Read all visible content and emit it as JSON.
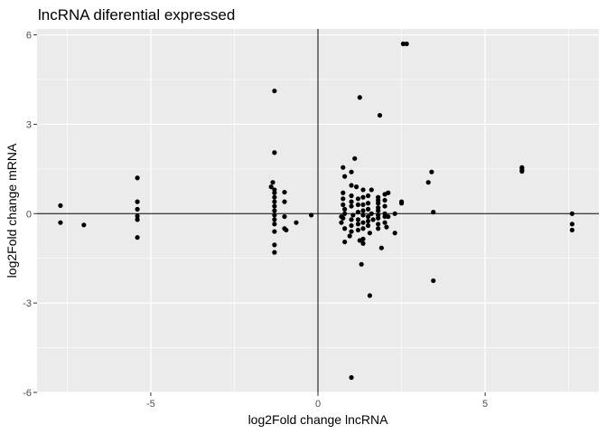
{
  "chart_data": {
    "type": "scatter",
    "title": "lncRNA diferential expressed",
    "xlabel": "log2Fold change lncRNA",
    "ylabel": "log2Fold change mRNA",
    "xlim": [
      -8.4,
      8.4
    ],
    "ylim": [
      -6,
      6.2
    ],
    "x_major_ticks": [
      -5,
      0,
      5
    ],
    "x_tick_labels": [
      "-5",
      "0",
      "5"
    ],
    "x_minor_ticks": [
      -7.5,
      -2.5,
      2.5,
      7.5
    ],
    "y_major_ticks": [
      -6,
      -3,
      0,
      3,
      6
    ],
    "y_tick_labels": [
      "-6",
      "-3",
      "0",
      "3",
      "6"
    ],
    "y_minor_ticks": [
      -4.5,
      -1.5,
      1.5,
      4.5
    ],
    "reference_lines": {
      "x": 0,
      "y": 0
    },
    "grid": true,
    "colors": {
      "panel": "#ebebeb",
      "grid": "#ffffff",
      "point": "#000000",
      "reference": "#000000"
    },
    "points": [
      [
        -7.7,
        0.27
      ],
      [
        -7.7,
        -0.3
      ],
      [
        -7.0,
        -0.38
      ],
      [
        -5.4,
        1.2
      ],
      [
        -5.4,
        0.4
      ],
      [
        -5.4,
        0.15
      ],
      [
        -5.4,
        -0.08
      ],
      [
        -5.4,
        -0.2
      ],
      [
        -5.4,
        -0.8
      ],
      [
        -1.4,
        0.9
      ],
      [
        -1.35,
        1.05
      ],
      [
        -1.3,
        4.12
      ],
      [
        -1.3,
        2.05
      ],
      [
        -1.3,
        0.8
      ],
      [
        -1.3,
        0.7
      ],
      [
        -1.3,
        0.55
      ],
      [
        -1.3,
        0.4
      ],
      [
        -1.3,
        0.25
      ],
      [
        -1.3,
        0.1
      ],
      [
        -1.3,
        -0.05
      ],
      [
        -1.3,
        -0.2
      ],
      [
        -1.3,
        -0.35
      ],
      [
        -1.3,
        -0.6
      ],
      [
        -1.3,
        -1.05
      ],
      [
        -1.3,
        -1.3
      ],
      [
        -1.0,
        0.72
      ],
      [
        -1.0,
        0.4
      ],
      [
        -1.0,
        -0.1
      ],
      [
        -1.0,
        -0.5
      ],
      [
        -0.95,
        -0.55
      ],
      [
        -0.65,
        -0.3
      ],
      [
        -0.2,
        -0.05
      ],
      [
        0.75,
        1.55
      ],
      [
        0.8,
        1.25
      ],
      [
        0.75,
        0.7
      ],
      [
        0.75,
        0.5
      ],
      [
        0.75,
        0.3
      ],
      [
        0.8,
        0.15
      ],
      [
        0.8,
        0.0
      ],
      [
        0.75,
        -0.15
      ],
      [
        0.7,
        -0.3
      ],
      [
        0.8,
        -0.5
      ],
      [
        0.8,
        -0.95
      ],
      [
        0.7,
        -0.1
      ],
      [
        1.0,
        1.4
      ],
      [
        1.0,
        0.95
      ],
      [
        1.0,
        0.6
      ],
      [
        1.0,
        0.4
      ],
      [
        1.0,
        0.25
      ],
      [
        1.05,
        -0.05
      ],
      [
        1.0,
        -0.2
      ],
      [
        1.0,
        -0.4
      ],
      [
        1.0,
        -0.6
      ],
      [
        1.0,
        -5.5
      ],
      [
        0.95,
        -0.75
      ],
      [
        1.1,
        1.85
      ],
      [
        1.15,
        0.9
      ],
      [
        1.2,
        0.5
      ],
      [
        1.2,
        0.3
      ],
      [
        1.2,
        0.05
      ],
      [
        1.2,
        -0.2
      ],
      [
        1.2,
        -0.35
      ],
      [
        1.2,
        -0.55
      ],
      [
        1.25,
        3.9
      ],
      [
        1.3,
        -1.7
      ],
      [
        1.25,
        -0.9
      ],
      [
        1.35,
        0.8
      ],
      [
        1.35,
        0.55
      ],
      [
        1.35,
        0.3
      ],
      [
        1.35,
        0.1
      ],
      [
        1.35,
        -0.05
      ],
      [
        1.35,
        -0.3
      ],
      [
        1.35,
        -0.5
      ],
      [
        1.35,
        -0.85
      ],
      [
        1.35,
        -1.0
      ],
      [
        1.5,
        0.6
      ],
      [
        1.5,
        0.35
      ],
      [
        1.5,
        0.15
      ],
      [
        1.5,
        -0.1
      ],
      [
        1.5,
        -0.25
      ],
      [
        1.5,
        -0.4
      ],
      [
        1.55,
        -0.65
      ],
      [
        1.55,
        -2.75
      ],
      [
        1.6,
        0.0
      ],
      [
        1.6,
        0.8
      ],
      [
        1.65,
        -0.2
      ],
      [
        1.8,
        0.55
      ],
      [
        1.8,
        0.45
      ],
      [
        1.8,
        0.35
      ],
      [
        1.8,
        0.2
      ],
      [
        1.8,
        0.1
      ],
      [
        1.8,
        -0.05
      ],
      [
        1.8,
        -0.15
      ],
      [
        1.8,
        -0.35
      ],
      [
        1.8,
        -0.5
      ],
      [
        1.85,
        3.3
      ],
      [
        1.9,
        -1.15
      ],
      [
        2.0,
        0.65
      ],
      [
        2.0,
        0.45
      ],
      [
        2.0,
        0.25
      ],
      [
        2.0,
        0.0
      ],
      [
        2.0,
        -0.1
      ],
      [
        2.0,
        -0.3
      ],
      [
        2.05,
        -0.45
      ],
      [
        2.1,
        0.7
      ],
      [
        2.1,
        -0.1
      ],
      [
        2.3,
        0.0
      ],
      [
        2.3,
        -0.65
      ],
      [
        2.5,
        0.4
      ],
      [
        2.5,
        0.35
      ],
      [
        2.55,
        5.7
      ],
      [
        2.65,
        5.7
      ],
      [
        3.3,
        1.05
      ],
      [
        3.4,
        1.4
      ],
      [
        3.45,
        0.05
      ],
      [
        3.45,
        -2.25
      ],
      [
        6.1,
        1.55
      ],
      [
        6.1,
        1.48
      ],
      [
        6.1,
        1.42
      ],
      [
        7.6,
        0.0
      ],
      [
        7.6,
        -0.35
      ],
      [
        7.6,
        -0.55
      ]
    ]
  }
}
